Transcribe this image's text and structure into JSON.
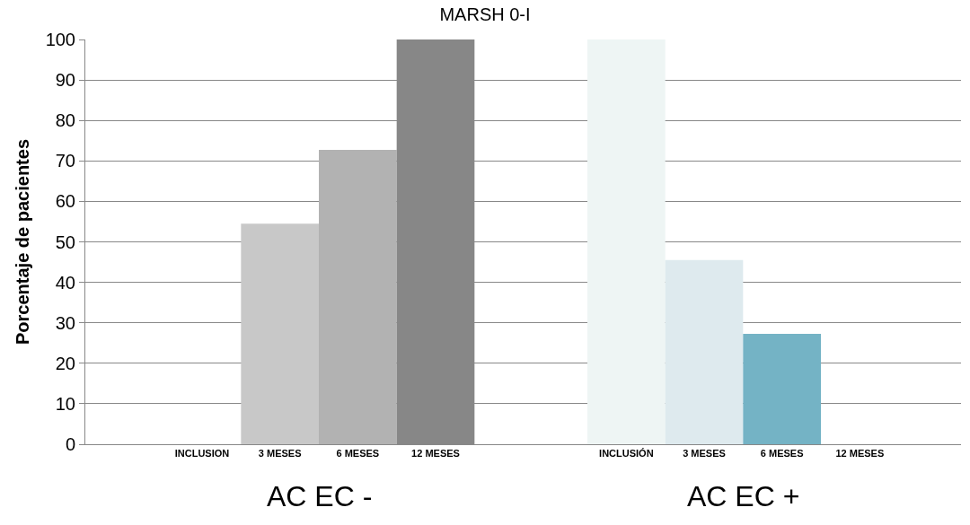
{
  "chart_data": {
    "type": "bar",
    "title": "MARSH 0-I",
    "ylabel": "Porcentaje de pacientes",
    "categories": [
      "INCLUSION",
      "3 MESES",
      "6 MESES",
      "12 MESES",
      "INCLUSIÓN",
      "3 MESES",
      "6 MESES",
      "12 MESES"
    ],
    "values": [
      0,
      54.5,
      72.7,
      100,
      100,
      45.5,
      27.3,
      0
    ],
    "colors": [
      "#c8c8c8",
      "#c8c8c8",
      "#b2b2b2",
      "#878787",
      "#eef5f4",
      "#deeaee",
      "#74b3c5",
      "#74b3c5"
    ],
    "ylim": [
      0,
      100
    ],
    "yticks": [
      0,
      10,
      20,
      30,
      40,
      50,
      60,
      70,
      80,
      90,
      100
    ],
    "grid": "y",
    "annotations": [
      "AC EC -",
      "AC EC +"
    ]
  }
}
